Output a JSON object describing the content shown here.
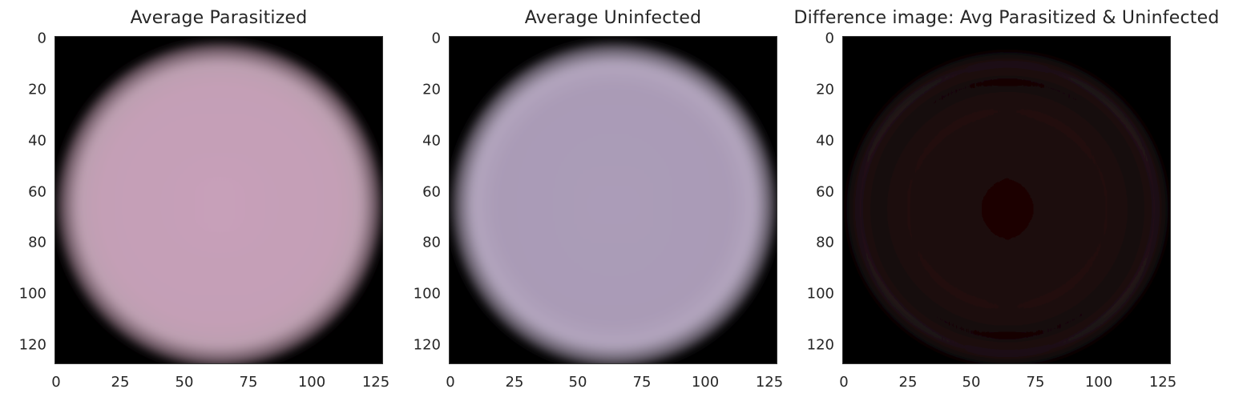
{
  "chart_data": [
    {
      "type": "image",
      "title": "Average Parasitized",
      "xlim": [
        0,
        128
      ],
      "ylim": [
        128,
        0
      ],
      "xticks": [
        "0",
        "25",
        "50",
        "75",
        "100",
        "125"
      ],
      "yticks": [
        "0",
        "20",
        "40",
        "60",
        "80",
        "100",
        "120"
      ],
      "xtick_values": [
        0,
        25,
        50,
        75,
        100,
        125
      ],
      "ytick_values": [
        0,
        20,
        40,
        60,
        80,
        100,
        120
      ],
      "image_center": [
        64,
        64
      ],
      "cell_color": "#c39eb4",
      "background_color": "#000000"
    },
    {
      "type": "image",
      "title": "Average Uninfected",
      "xlim": [
        0,
        128
      ],
      "ylim": [
        128,
        0
      ],
      "xticks": [
        "0",
        "25",
        "50",
        "75",
        "100",
        "125"
      ],
      "yticks": [
        "0",
        "20",
        "40",
        "60",
        "80",
        "100",
        "120"
      ],
      "xtick_values": [
        0,
        25,
        50,
        75,
        100,
        125
      ],
      "ytick_values": [
        0,
        20,
        40,
        60,
        80,
        100,
        120
      ],
      "image_center": [
        64,
        64
      ],
      "cell_color": "#aa9bb6",
      "background_color": "#000000"
    },
    {
      "type": "image",
      "title": "Difference image: Avg Parasitized & Uninfected",
      "xlim": [
        0,
        128
      ],
      "ylim": [
        128,
        0
      ],
      "xticks": [
        "0",
        "25",
        "50",
        "75",
        "100",
        "125"
      ],
      "yticks": [
        "0",
        "20",
        "40",
        "60",
        "80",
        "100",
        "120"
      ],
      "xtick_values": [
        0,
        25,
        50,
        75,
        100,
        125
      ],
      "ytick_values": [
        0,
        20,
        40,
        60,
        80,
        100,
        120
      ],
      "image_center": [
        64,
        64
      ],
      "cell_color": "#1e0707",
      "background_color": "#000000"
    }
  ]
}
